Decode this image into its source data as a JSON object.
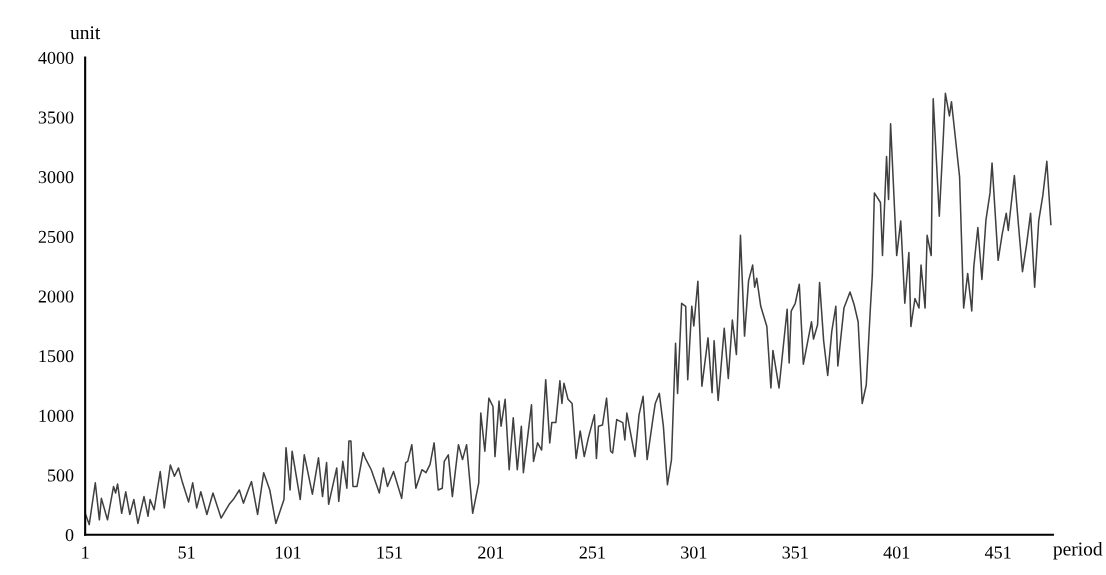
{
  "chart_data": {
    "type": "line",
    "xlabel": "period",
    "ylabel": "unit",
    "xlim": [
      1,
      478
    ],
    "xticks": [
      1,
      51,
      101,
      151,
      201,
      251,
      301,
      351,
      401,
      451
    ],
    "ylim": [
      0,
      4000
    ],
    "yticks": [
      0,
      500,
      1000,
      1500,
      2000,
      2500,
      3000,
      3500,
      4000
    ],
    "grid": false,
    "legend": false,
    "marker": "none",
    "line_style": "solid",
    "series": [
      {
        "color": "#404040",
        "x": [
          1,
          3,
          6,
          8,
          9,
          12,
          15,
          16,
          17,
          19,
          21,
          23,
          25,
          27,
          30,
          32,
          33,
          35,
          38,
          40,
          43,
          45,
          47,
          49,
          52,
          54,
          56,
          58,
          61,
          64,
          68,
          72,
          74,
          77,
          79,
          82,
          83,
          86,
          89,
          92,
          95,
          99,
          100,
          102,
          103,
          107,
          109,
          113,
          116,
          118,
          120,
          121,
          125,
          126,
          128,
          130,
          131,
          132,
          133,
          135,
          138,
          139,
          142,
          146,
          148,
          150,
          153,
          157,
          159,
          160,
          162,
          164,
          167,
          169,
          171,
          173,
          175,
          177,
          178,
          180,
          182,
          185,
          187,
          189,
          192,
          195,
          196,
          198,
          200,
          202,
          203,
          205,
          206,
          208,
          210,
          212,
          214,
          216,
          217,
          221,
          222,
          224,
          226,
          228,
          230,
          231,
          233,
          235,
          236,
          237,
          239,
          241,
          243,
          245,
          247,
          249,
          252,
          253,
          254,
          256,
          258,
          260,
          261,
          263,
          266,
          267,
          268,
          272,
          274,
          276,
          278,
          281,
          282,
          284,
          286,
          288,
          290,
          292,
          293,
          295,
          297,
          298,
          300,
          301,
          303,
          305,
          308,
          310,
          311,
          313,
          314,
          316,
          318,
          320,
          322,
          324,
          326,
          328,
          330,
          331,
          332,
          334,
          337,
          339,
          340,
          343,
          347,
          348,
          349,
          351,
          353,
          355,
          359,
          360,
          362,
          363,
          365,
          367,
          369,
          371,
          372,
          375,
          378,
          380,
          382,
          384,
          386,
          388,
          389,
          390,
          393,
          394,
          396,
          397,
          398,
          401,
          403,
          405,
          407,
          408,
          410,
          412,
          413,
          415,
          416,
          418,
          419,
          422,
          424,
          425,
          427,
          428,
          432,
          434,
          436,
          438,
          439,
          441,
          443,
          445,
          447,
          448,
          451,
          453,
          455,
          456,
          459,
          461,
          463,
          465,
          467,
          469,
          471,
          473,
          475,
          477
        ],
        "values": [
          180,
          85,
          435,
          125,
          305,
          125,
          405,
          350,
          425,
          180,
          360,
          170,
          295,
          95,
          320,
          155,
          295,
          210,
          530,
          225,
          585,
          490,
          560,
          435,
          275,
          435,
          225,
          360,
          170,
          350,
          140,
          255,
          295,
          375,
          265,
          405,
          445,
          170,
          520,
          375,
          95,
          295,
          730,
          375,
          700,
          295,
          670,
          340,
          645,
          320,
          605,
          255,
          560,
          280,
          615,
          390,
          785,
          785,
          405,
          405,
          690,
          645,
          545,
          350,
          560,
          405,
          530,
          305,
          605,
          615,
          755,
          390,
          545,
          520,
          590,
          770,
          375,
          390,
          615,
          670,
          320,
          755,
          630,
          755,
          180,
          435,
          1020,
          700,
          1145,
          1075,
          655,
          1120,
          910,
          1135,
          545,
          980,
          545,
          910,
          520,
          1090,
          615,
          770,
          710,
          1300,
          770,
          940,
          940,
          1290,
          1100,
          1270,
          1135,
          1100,
          640,
          870,
          655,
          810,
          1005,
          640,
          910,
          920,
          1145,
          700,
          685,
          965,
          940,
          795,
          1020,
          655,
          1005,
          1160,
          630,
          990,
          1100,
          1185,
          910,
          420,
          630,
          1605,
          1185,
          1940,
          1915,
          1300,
          1915,
          1750,
          2125,
          1245,
          1650,
          1190,
          1625,
          1125,
          1320,
          1730,
          1310,
          1800,
          1510,
          2510,
          1665,
          2130,
          2260,
          2075,
          2150,
          1915,
          1745,
          1230,
          1545,
          1230,
          1890,
          1440,
          1875,
          1940,
          2100,
          1430,
          1785,
          1640,
          1760,
          2115,
          1625,
          1335,
          1705,
          1915,
          1415,
          1900,
          2035,
          1930,
          1785,
          1100,
          1255,
          1890,
          2180,
          2865,
          2785,
          2340,
          3170,
          2810,
          3445,
          2340,
          2630,
          1940,
          2365,
          1745,
          1980,
          1900,
          2260,
          1900,
          2510,
          2340,
          3655,
          2670,
          3340,
          3700,
          3510,
          3630,
          3000,
          1900,
          2190,
          1875,
          2245,
          2575,
          2140,
          2640,
          2865,
          3115,
          2300,
          2520,
          2695,
          2550,
          3010,
          2600,
          2205,
          2430,
          2695,
          2075,
          2630,
          2840,
          3130,
          2600
        ]
      }
    ]
  }
}
